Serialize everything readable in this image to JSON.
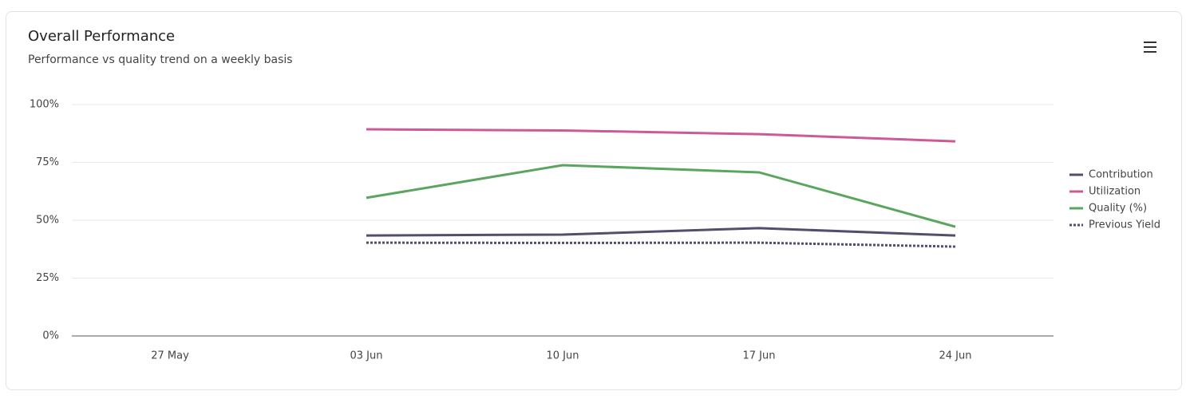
{
  "chart_data": {
    "type": "line",
    "title": "Overall Performance",
    "subtitle": "Performance vs quality trend on a weekly basis",
    "categories": [
      "27 May",
      "03 Jun",
      "10 Jun",
      "17 Jun",
      "24 Jun"
    ],
    "series": [
      {
        "name": "Contribution",
        "color": "#564d6e",
        "values": [
          null,
          43.4,
          43.8,
          46.6,
          43.4
        ]
      },
      {
        "name": "Utilization",
        "color": "#cc5a99",
        "values": [
          null,
          89.3,
          88.8,
          87.2,
          84.1
        ]
      },
      {
        "name": "Quality (%)",
        "color": "#5aa65e",
        "values": [
          null,
          59.7,
          73.8,
          70.7,
          47.2
        ]
      },
      {
        "name": "Previous Yield",
        "color": "#564d6e",
        "dashed": true,
        "values": [
          null,
          40.3,
          40.2,
          40.3,
          38.6
        ]
      }
    ],
    "ylim": [
      0,
      100
    ],
    "yticks": [
      {
        "value": 0,
        "label": "0%"
      },
      {
        "value": 25,
        "label": "25%"
      },
      {
        "value": 50,
        "label": "50%"
      },
      {
        "value": 75,
        "label": "75%"
      },
      {
        "value": 100,
        "label": "100%"
      }
    ],
    "grid": true,
    "legend": "right"
  }
}
